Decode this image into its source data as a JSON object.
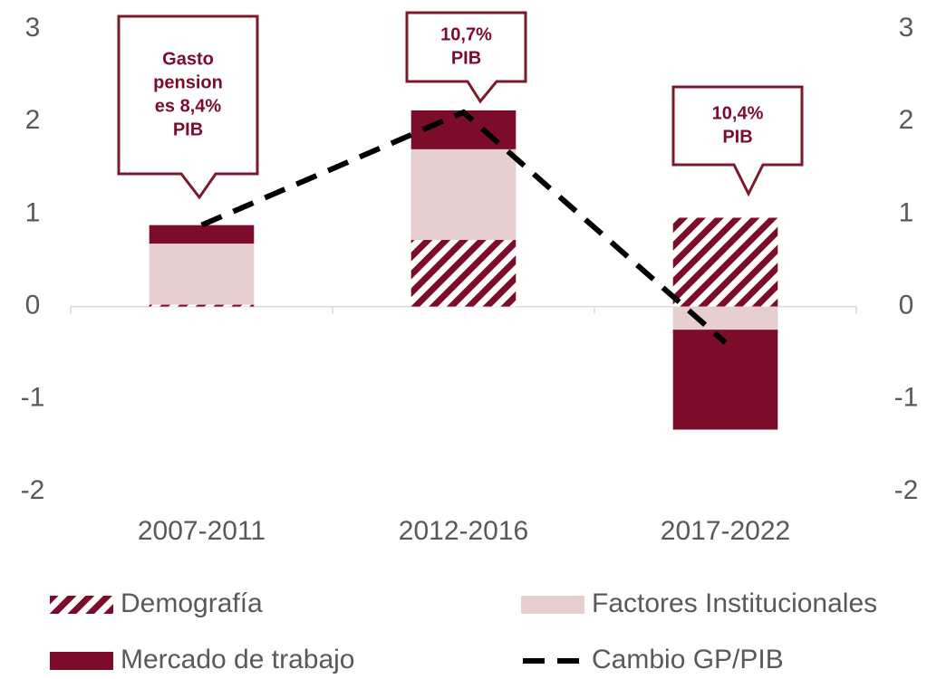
{
  "chart_data": {
    "type": "bar",
    "categories": [
      "2007-2011",
      "2012-2016",
      "2017-2022"
    ],
    "series": [
      {
        "name": "Demografía",
        "color": "#7d0c2b",
        "pattern": "hatch",
        "values": [
          0.02,
          0.72,
          0.96
        ]
      },
      {
        "name": "Factores Institucionales",
        "color": "#e8cfcf",
        "values": [
          0.66,
          0.98,
          -0.25
        ]
      },
      {
        "name": "Mercado de trabajo",
        "color": "#7d0c2b",
        "values": [
          0.2,
          0.42,
          -1.08
        ]
      },
      {
        "name": "Cambio GP/PIB",
        "type": "line",
        "color": "#000000",
        "dash": true,
        "values": [
          0.88,
          2.1,
          -0.39
        ]
      }
    ],
    "ylim": [
      -2,
      3
    ],
    "yticks": [
      -2,
      -1,
      0,
      1,
      2,
      3
    ],
    "y2lim": [
      -2,
      3
    ],
    "y2ticks": [
      -2,
      -1,
      0,
      1,
      2,
      3
    ],
    "annotations": [
      {
        "lines": [
          "Gasto",
          "pension",
          "es 8,4%",
          "PIB"
        ]
      },
      {
        "lines": [
          "10,7%",
          "PIB"
        ]
      },
      {
        "lines": [
          "10,4%",
          "PIB"
        ]
      }
    ],
    "legend": "bottom"
  }
}
